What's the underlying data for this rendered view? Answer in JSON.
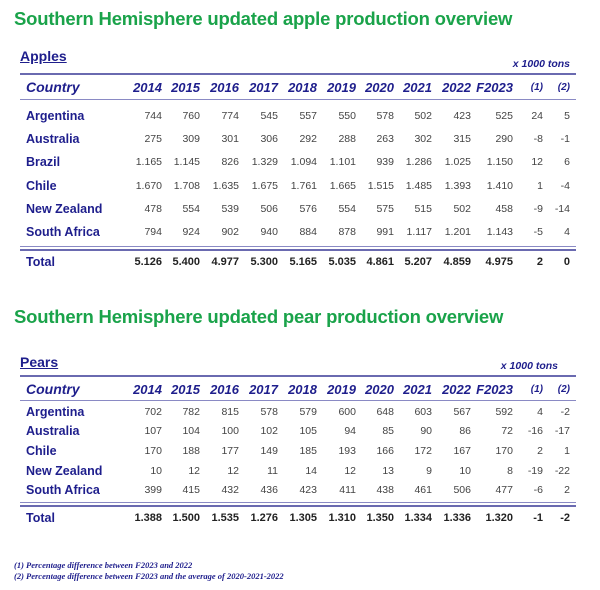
{
  "apples_section": {
    "title": "Southern Hemisphere updated apple production overview",
    "table_label": "Apples",
    "units": "x 1000 tons",
    "columns": [
      "Country",
      "2014",
      "2015",
      "2016",
      "2017",
      "2018",
      "2019",
      "2020",
      "2021",
      "2022",
      "F2023",
      "(1)",
      "(2)"
    ],
    "rows": [
      [
        "Argentina",
        "744",
        "760",
        "774",
        "545",
        "557",
        "550",
        "578",
        "502",
        "423",
        "525",
        "24",
        "5"
      ],
      [
        "Australia",
        "275",
        "309",
        "301",
        "306",
        "292",
        "288",
        "263",
        "302",
        "315",
        "290",
        "-8",
        "-1"
      ],
      [
        "Brazil",
        "1.165",
        "1.145",
        "826",
        "1.329",
        "1.094",
        "1.101",
        "939",
        "1.286",
        "1.025",
        "1.150",
        "12",
        "6"
      ],
      [
        "Chile",
        "1.670",
        "1.708",
        "1.635",
        "1.675",
        "1.761",
        "1.665",
        "1.515",
        "1.485",
        "1.393",
        "1.410",
        "1",
        "-4"
      ],
      [
        "New Zealand",
        "478",
        "554",
        "539",
        "506",
        "576",
        "554",
        "575",
        "515",
        "502",
        "458",
        "-9",
        "-14"
      ],
      [
        "South Africa",
        "794",
        "924",
        "902",
        "940",
        "884",
        "878",
        "991",
        "1.117",
        "1.201",
        "1.143",
        "-5",
        "4"
      ]
    ],
    "total": [
      "Total",
      "5.126",
      "5.400",
      "4.977",
      "5.300",
      "5.165",
      "5.035",
      "4.861",
      "5.207",
      "4.859",
      "4.975",
      "2",
      "0"
    ]
  },
  "pears_section": {
    "title": "Southern Hemisphere updated pear production overview",
    "table_label": "Pears",
    "units": "x 1000 tons",
    "columns": [
      "Country",
      "2014",
      "2015",
      "2016",
      "2017",
      "2018",
      "2019",
      "2020",
      "2021",
      "2022",
      "F2023",
      "(1)",
      "(2)"
    ],
    "rows": [
      [
        "Argentina",
        "702",
        "782",
        "815",
        "578",
        "579",
        "600",
        "648",
        "603",
        "567",
        "592",
        "4",
        "-2"
      ],
      [
        "Australia",
        "107",
        "104",
        "100",
        "102",
        "105",
        "94",
        "85",
        "90",
        "86",
        "72",
        "-16",
        "-17"
      ],
      [
        "Chile",
        "170",
        "188",
        "177",
        "149",
        "185",
        "193",
        "166",
        "172",
        "167",
        "170",
        "2",
        "1"
      ],
      [
        "New Zealand",
        "10",
        "12",
        "12",
        "11",
        "14",
        "12",
        "13",
        "9",
        "10",
        "8",
        "-19",
        "-22"
      ],
      [
        "South Africa",
        "399",
        "415",
        "432",
        "436",
        "423",
        "411",
        "438",
        "461",
        "506",
        "477",
        "-6",
        "2"
      ]
    ],
    "total": [
      "Total",
      "1.388",
      "1.500",
      "1.535",
      "1.276",
      "1.305",
      "1.310",
      "1.350",
      "1.334",
      "1.336",
      "1.320",
      "-1",
      "-2"
    ]
  },
  "footnotes": [
    "(1) Percentage difference between F2023 and 2022",
    "(2) Percentage difference between F2023 and the average of 2020-2021-2022"
  ],
  "colors": {
    "title_green": "#1aa34a",
    "header_navy": "#1e1e8c",
    "rule": "#6a6ab0"
  }
}
